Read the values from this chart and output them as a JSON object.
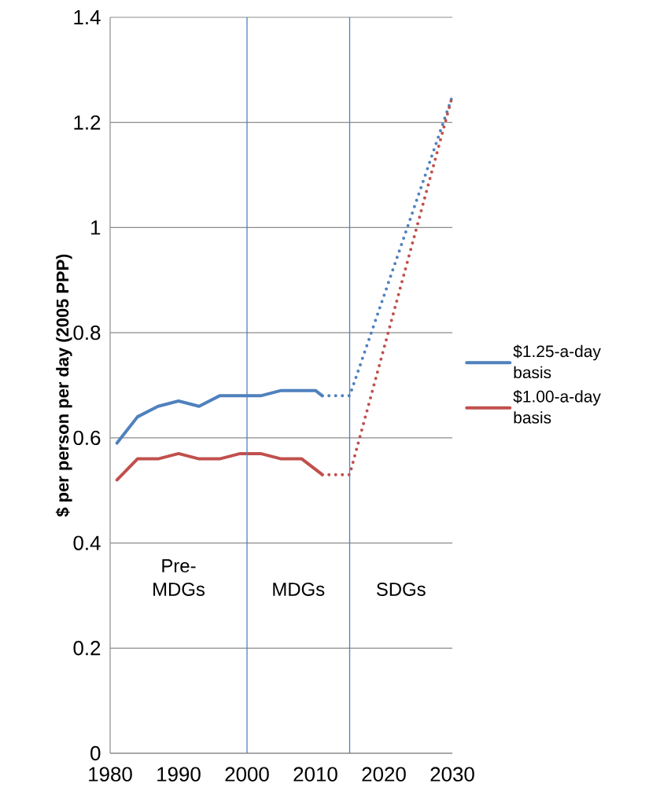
{
  "chart_data": {
    "type": "line",
    "ylabel": "$ per person per day (2005 PPP)",
    "xlim": [
      1980,
      2030
    ],
    "xticks": [
      1980,
      1990,
      2000,
      2010,
      2020,
      2030
    ],
    "ylim": [
      0,
      1.4
    ],
    "yticks": [
      0,
      0.2,
      0.4,
      0.6,
      0.8,
      1,
      1.2,
      1.4
    ],
    "grid": "y",
    "legend": "right",
    "marker": "none",
    "series": [
      {
        "name": "$1.25-a-day basis",
        "color": "#4f81bd",
        "line_style": "solid",
        "x": [
          1981,
          1984,
          1987,
          1990,
          1993,
          1996,
          1999,
          2002,
          2005,
          2008,
          2010,
          2011
        ],
        "values": [
          0.59,
          0.64,
          0.66,
          0.67,
          0.66,
          0.68,
          0.68,
          0.68,
          0.69,
          0.69,
          0.69,
          0.68
        ]
      },
      {
        "name": "$1.00-a-day basis",
        "color": "#c0504d",
        "line_style": "solid",
        "x": [
          1981,
          1984,
          1987,
          1990,
          1993,
          1996,
          1999,
          2002,
          2005,
          2008,
          2011
        ],
        "values": [
          0.52,
          0.56,
          0.56,
          0.57,
          0.56,
          0.56,
          0.57,
          0.57,
          0.56,
          0.56,
          0.53
        ]
      },
      {
        "color": "#4f81bd",
        "line_style": "dotted",
        "x": [
          2011,
          2015,
          2030
        ],
        "values": [
          0.68,
          0.68,
          1.25
        ]
      },
      {
        "color": "#c0504d",
        "line_style": "dotted",
        "x": [
          2011,
          2015,
          2030
        ],
        "values": [
          0.53,
          0.53,
          1.25
        ]
      }
    ],
    "ref_lines": [
      {
        "axis": "x",
        "value": 2000,
        "color": "#4f81bd"
      },
      {
        "axis": "x",
        "value": 2015,
        "color": "#4f81bd"
      }
    ],
    "annotations": [
      "Pre-MDGs",
      "MDGs",
      "SDGs"
    ]
  }
}
